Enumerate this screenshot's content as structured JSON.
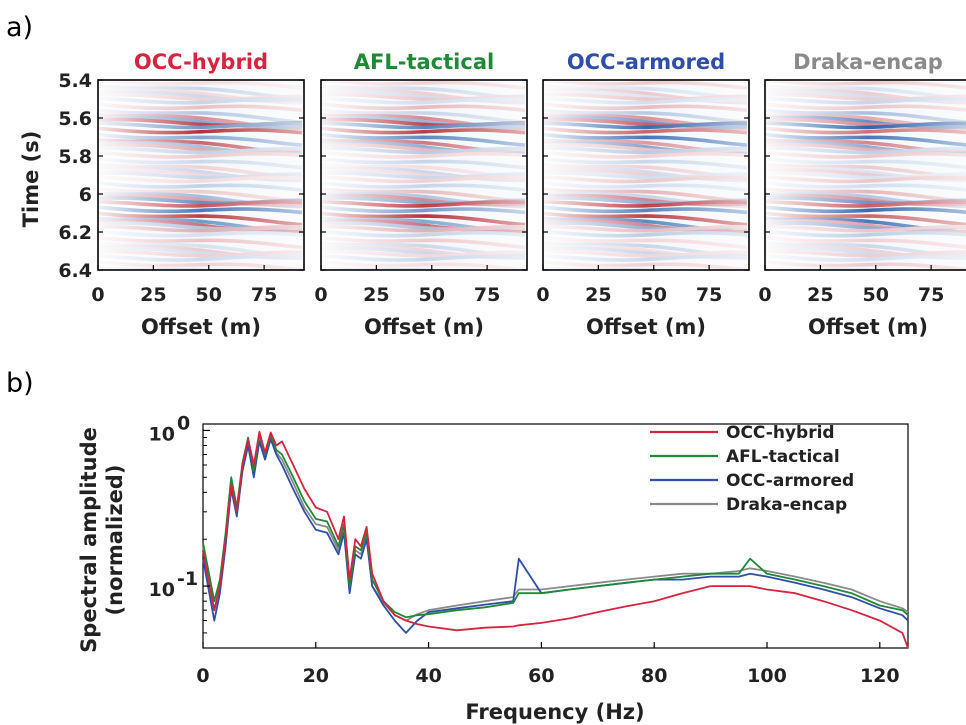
{
  "panel_labels": {
    "a": "a)",
    "b": "b)"
  },
  "colors": {
    "OCC-hybrid": "#d6243f",
    "AFL-tactical": "#1f8a35",
    "OCC-armored": "#2e4ea8",
    "Draka-encap": "#8a8a8a"
  },
  "chart_data": [
    {
      "type": "heatmap",
      "panel": "a",
      "ylabel": "Time (s)",
      "xlabel": "Offset (m)",
      "colormap": "red-white-blue (diverging)",
      "xlim": [
        0,
        93
      ],
      "ylim": [
        5.4,
        6.4
      ],
      "y_reversed": true,
      "x_ticks": [
        "0",
        "25",
        "50",
        "75"
      ],
      "y_ticks": [
        "5.4",
        "5.6",
        "5.8",
        "6",
        "6.2",
        "6.4"
      ],
      "panels": [
        {
          "title": "OCC-hybrid",
          "title_color": "#d6243f"
        },
        {
          "title": "AFL-tactical",
          "title_color": "#1f8a35"
        },
        {
          "title": "OCC-armored",
          "title_color": "#2e4ea8"
        },
        {
          "title": "Draka-encap",
          "title_color": "#8a8a8a"
        }
      ]
    },
    {
      "type": "line",
      "panel": "b",
      "xlabel": "Frequency (Hz)",
      "ylabel": "Spectral amplitude",
      "ylabel2": "(normalized)",
      "yscale": "log",
      "xlim": [
        0,
        125
      ],
      "ylim": [
        0.04,
        1.1
      ],
      "x_ticks": [
        "0",
        "20",
        "40",
        "60",
        "80",
        "100",
        "120"
      ],
      "y_ticks": [
        {
          "base": "10",
          "exp": "0",
          "value": 1
        },
        {
          "base": "10",
          "exp": "-1",
          "value": 0.1
        }
      ],
      "legend_position": "top-right",
      "grid": false,
      "x": [
        0,
        2,
        3,
        4,
        5,
        6,
        7,
        8,
        9,
        10,
        11,
        12,
        13,
        14,
        16,
        18,
        20,
        22,
        24,
        25,
        26,
        27,
        28,
        29,
        30,
        32,
        34,
        36,
        38,
        40,
        45,
        50,
        55,
        56,
        60,
        65,
        70,
        75,
        80,
        85,
        90,
        95,
        97,
        100,
        105,
        110,
        115,
        120,
        124,
        125
      ],
      "series": [
        {
          "name": "OCC-hybrid",
          "values": [
            0.17,
            0.07,
            0.1,
            0.2,
            0.45,
            0.3,
            0.6,
            0.88,
            0.6,
            0.98,
            0.72,
            0.97,
            0.8,
            0.85,
            0.6,
            0.42,
            0.32,
            0.3,
            0.2,
            0.28,
            0.11,
            0.2,
            0.18,
            0.24,
            0.12,
            0.08,
            0.065,
            0.06,
            0.057,
            0.055,
            0.052,
            0.054,
            0.055,
            0.056,
            0.058,
            0.062,
            0.068,
            0.074,
            0.08,
            0.09,
            0.1,
            0.1,
            0.1,
            0.095,
            0.09,
            0.08,
            0.07,
            0.06,
            0.05,
            0.04
          ]
        },
        {
          "name": "AFL-tactical",
          "values": [
            0.19,
            0.08,
            0.11,
            0.22,
            0.5,
            0.32,
            0.62,
            0.9,
            0.55,
            0.95,
            0.7,
            0.93,
            0.75,
            0.7,
            0.5,
            0.35,
            0.27,
            0.26,
            0.18,
            0.25,
            0.1,
            0.18,
            0.17,
            0.22,
            0.11,
            0.08,
            0.068,
            0.063,
            0.065,
            0.066,
            0.07,
            0.073,
            0.078,
            0.09,
            0.09,
            0.095,
            0.1,
            0.105,
            0.11,
            0.115,
            0.12,
            0.12,
            0.15,
            0.12,
            0.11,
            0.1,
            0.09,
            0.075,
            0.07,
            0.065
          ]
        },
        {
          "name": "OCC-armored",
          "values": [
            0.15,
            0.06,
            0.09,
            0.18,
            0.42,
            0.28,
            0.55,
            0.8,
            0.5,
            0.85,
            0.65,
            0.88,
            0.7,
            0.6,
            0.42,
            0.3,
            0.23,
            0.22,
            0.16,
            0.22,
            0.09,
            0.16,
            0.15,
            0.2,
            0.1,
            0.075,
            0.06,
            0.05,
            0.06,
            0.068,
            0.072,
            0.076,
            0.08,
            0.15,
            0.09,
            0.095,
            0.1,
            0.105,
            0.11,
            0.11,
            0.115,
            0.115,
            0.12,
            0.115,
            0.105,
            0.095,
            0.085,
            0.072,
            0.065,
            0.06
          ]
        },
        {
          "name": "Draka-encap",
          "values": [
            0.18,
            0.07,
            0.1,
            0.21,
            0.47,
            0.3,
            0.58,
            0.85,
            0.52,
            0.9,
            0.68,
            0.9,
            0.72,
            0.65,
            0.46,
            0.32,
            0.25,
            0.24,
            0.17,
            0.23,
            0.1,
            0.17,
            0.16,
            0.21,
            0.1,
            0.078,
            0.065,
            0.06,
            0.066,
            0.07,
            0.075,
            0.08,
            0.085,
            0.095,
            0.095,
            0.1,
            0.105,
            0.11,
            0.115,
            0.12,
            0.12,
            0.125,
            0.13,
            0.125,
            0.115,
            0.105,
            0.095,
            0.08,
            0.072,
            0.068
          ]
        }
      ]
    }
  ]
}
